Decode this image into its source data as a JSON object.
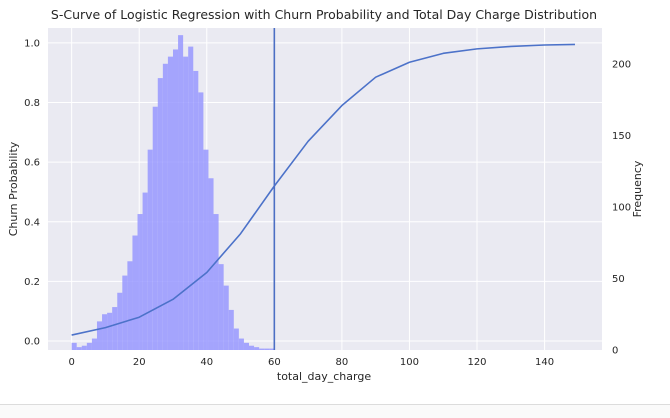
{
  "chart_data": {
    "type": "bar",
    "title": "S-Curve of Logistic Regression with Churn Probability and Total Day Charge Distribution",
    "xlabel": "total_day_charge",
    "ylabel": "Churn Probability",
    "y2label": "Frequency",
    "xlim": [
      -7,
      157
    ],
    "ylim": [
      -0.03,
      1.05
    ],
    "y2lim": [
      0,
      225
    ],
    "xticks": [
      0,
      20,
      40,
      60,
      80,
      100,
      120,
      140
    ],
    "yticks": [
      0.0,
      0.2,
      0.4,
      0.6,
      0.8,
      1.0
    ],
    "y2ticks": [
      0,
      50,
      100,
      150,
      200
    ],
    "grid": true,
    "vline_x": 60,
    "histogram": {
      "bin_start": 0,
      "bin_width": 1.5,
      "counts": [
        5,
        2,
        3,
        5,
        8,
        20,
        25,
        26,
        30,
        40,
        52,
        62,
        80,
        95,
        110,
        140,
        170,
        190,
        200,
        205,
        210,
        220,
        205,
        212,
        195,
        180,
        140,
        120,
        95,
        60,
        45,
        28,
        15,
        8,
        5,
        3,
        2,
        1,
        1,
        1
      ]
    },
    "series": [
      {
        "type": "line",
        "x": [
          0,
          10,
          20,
          30,
          40,
          50,
          60,
          70,
          80,
          90,
          100,
          110,
          120,
          130,
          140,
          149
        ],
        "y": [
          0.02,
          0.045,
          0.08,
          0.14,
          0.23,
          0.36,
          0.52,
          0.67,
          0.79,
          0.885,
          0.935,
          0.965,
          0.98,
          0.988,
          0.993,
          0.995
        ]
      }
    ],
    "colors": {
      "background": "#eaeaf2",
      "grid": "#ffffff",
      "histogram": "#9898ff",
      "line": "#4c72c9",
      "vline": "#4c6fc4"
    }
  }
}
